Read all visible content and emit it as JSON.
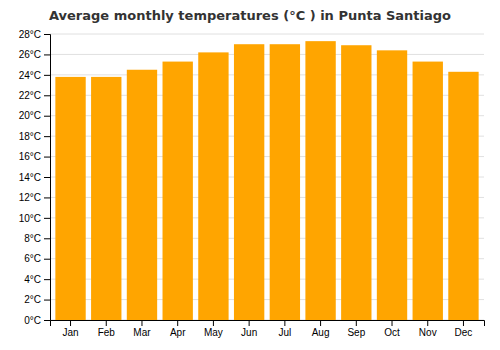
{
  "chart_data": {
    "type": "bar",
    "title": "Average monthly temperatures (°C ) in Punta Santiago",
    "categories": [
      "Jan",
      "Feb",
      "Mar",
      "Apr",
      "May",
      "Jun",
      "Jul",
      "Aug",
      "Sep",
      "Oct",
      "Nov",
      "Dec"
    ],
    "values": [
      23.8,
      23.8,
      24.5,
      25.3,
      26.2,
      27.0,
      27.0,
      27.3,
      26.9,
      26.4,
      25.3,
      24.3
    ],
    "color": "#FFA500",
    "ylim": [
      0,
      28
    ],
    "yticks": [
      {
        "value": 0,
        "label": "0°C"
      },
      {
        "value": 2,
        "label": "2°C"
      },
      {
        "value": 4,
        "label": "4°C"
      },
      {
        "value": 6,
        "label": "6°C"
      },
      {
        "value": 8,
        "label": "8°C"
      },
      {
        "value": 10,
        "label": "10°C"
      },
      {
        "value": 12,
        "label": "12°C"
      },
      {
        "value": 14,
        "label": "14°C"
      },
      {
        "value": 16,
        "label": "16°C"
      },
      {
        "value": 18,
        "label": "18°C"
      },
      {
        "value": 20,
        "label": "20°C"
      },
      {
        "value": 22,
        "label": "22°C"
      },
      {
        "value": 24,
        "label": "24°C"
      },
      {
        "value": 26,
        "label": "26°C"
      },
      {
        "value": 28,
        "label": "28°C"
      }
    ],
    "grid": true
  }
}
